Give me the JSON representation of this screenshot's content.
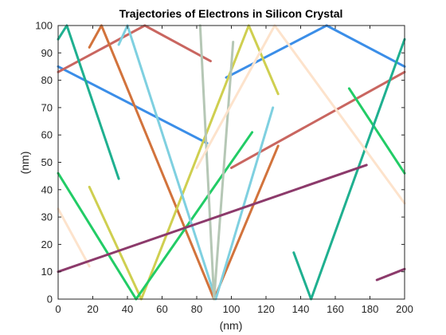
{
  "chart_data": {
    "type": "line",
    "title": "Trajectories of Electrons in Silicon Crystal",
    "xlabel": "(nm)",
    "ylabel": "(nm)",
    "xlim": [
      0,
      200
    ],
    "ylim": [
      0,
      100
    ],
    "x_ticks": [
      "0",
      "20",
      "40",
      "60",
      "80",
      "100",
      "120",
      "140",
      "160",
      "180",
      "200"
    ],
    "y_ticks": [
      "0",
      "10",
      "20",
      "30",
      "40",
      "50",
      "60",
      "70",
      "80",
      "90",
      "100"
    ],
    "grid": false,
    "legend": "none",
    "series": [
      {
        "color": "#3b8ee8",
        "segments": [
          [
            [
              0,
              85
            ],
            [
              86,
              57
            ]
          ],
          [
            [
              97,
              81
            ],
            [
              155,
              100
            ],
            [
              200,
              85
            ]
          ]
        ]
      },
      {
        "color": "#c96660",
        "segments": [
          [
            [
              0,
              83
            ],
            [
              50,
              100
            ],
            [
              88,
              87
            ]
          ],
          [
            [
              100,
              48
            ],
            [
              200,
              83
            ]
          ]
        ]
      },
      {
        "color": "#d2733c",
        "segments": [
          [
            [
              18,
              92
            ],
            [
              25,
              100
            ],
            [
              90,
              0
            ],
            [
              127,
              56
            ]
          ]
        ]
      },
      {
        "color": "#cfcf50",
        "segments": [
          [
            [
              18,
              41
            ],
            [
              48,
              0
            ],
            [
              110,
              100
            ],
            [
              127,
              75
            ]
          ]
        ]
      },
      {
        "color": "#22cc66",
        "segments": [
          [
            [
              0,
              46
            ],
            [
              45,
              0
            ],
            [
              112,
              61
            ]
          ],
          [
            [
              168,
              77
            ],
            [
              200,
              46
            ]
          ]
        ]
      },
      {
        "color": "#1fb090",
        "segments": [
          [
            [
              0,
              95
            ],
            [
              5,
              100
            ],
            [
              35,
              44
            ]
          ],
          [
            [
              136,
              17
            ],
            [
              146,
              0
            ],
            [
              200,
              95
            ]
          ]
        ]
      },
      {
        "color": "#7fd0e0",
        "segments": [
          [
            [
              35,
              93
            ],
            [
              40,
              100
            ],
            [
              91,
              0
            ],
            [
              124,
              70
            ]
          ]
        ]
      },
      {
        "color": "#b5c7b5",
        "segments": [
          [
            [
              82,
              100
            ],
            [
              90,
              0
            ],
            [
              101,
              94
            ]
          ]
        ]
      },
      {
        "color": "#fde3cc",
        "segments": [
          [
            [
              0,
              33
            ],
            [
              18,
              12
            ]
          ],
          [
            [
              80,
              48
            ],
            [
              125,
              100
            ],
            [
              200,
              35
            ]
          ]
        ]
      },
      {
        "color": "#8c3a6b",
        "segments": [
          [
            [
              0,
              10
            ],
            [
              178,
              49
            ]
          ],
          [
            [
              184,
              7
            ],
            [
              200,
              11
            ]
          ]
        ]
      }
    ]
  }
}
